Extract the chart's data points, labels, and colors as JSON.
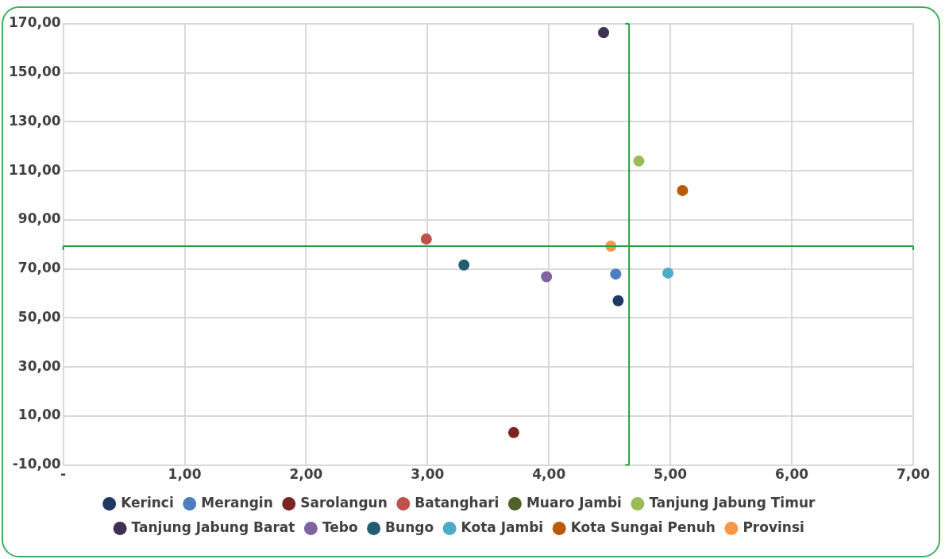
{
  "chart_data": {
    "type": "scatter",
    "xlim": [
      0,
      7
    ],
    "ylim": [
      -10,
      170
    ],
    "xticks": [
      {
        "value": 0,
        "label": "-"
      },
      {
        "value": 1,
        "label": "1,00"
      },
      {
        "value": 2,
        "label": "2,00"
      },
      {
        "value": 3,
        "label": "3,00"
      },
      {
        "value": 4,
        "label": "4,00"
      },
      {
        "value": 5,
        "label": "5,00"
      },
      {
        "value": 6,
        "label": "6,00"
      },
      {
        "value": 7,
        "label": "7,00"
      }
    ],
    "yticks": [
      {
        "value": -10,
        "label": "-10,00"
      },
      {
        "value": 10,
        "label": "10,00"
      },
      {
        "value": 30,
        "label": "30,00"
      },
      {
        "value": 50,
        "label": "50,00"
      },
      {
        "value": 70,
        "label": "70,00"
      },
      {
        "value": 90,
        "label": "90,00"
      },
      {
        "value": 110,
        "label": "110,00"
      },
      {
        "value": 130,
        "label": "130,00"
      },
      {
        "value": 150,
        "label": "150,00"
      },
      {
        "value": 170,
        "label": "170,00"
      }
    ],
    "grid": true,
    "legend": "bottom",
    "marker": "circle",
    "ref_lines": [
      {
        "axis": "x",
        "value": 4.66,
        "color": "#22a040"
      },
      {
        "axis": "y",
        "value": 79.3,
        "color": "#22a040"
      }
    ],
    "series": [
      {
        "name": "Kerinci",
        "color": "#203864",
        "x": [
          4.57
        ],
        "values": [
          57.0
        ]
      },
      {
        "name": "Merangin",
        "color": "#4a7ec0",
        "x": [
          4.55
        ],
        "values": [
          67.9
        ]
      },
      {
        "name": "Sarolangun",
        "color": "#7b2424",
        "x": [
          3.71
        ],
        "values": [
          3.2
        ]
      },
      {
        "name": "Batanghari",
        "color": "#c0504d",
        "x": [
          2.99
        ],
        "values": [
          82.2
        ]
      },
      {
        "name": "Muaro Jambi",
        "color": "#4f6228",
        "x": [
          null
        ],
        "values": [
          null
        ]
      },
      {
        "name": "Tanjung Jabung Timur",
        "color": "#9bbb59",
        "x": [
          4.74
        ],
        "values": [
          114
        ]
      },
      {
        "name": "Tanjung Jabung Barat",
        "color": "#403152",
        "x": [
          4.45
        ],
        "values": [
          166.4
        ]
      },
      {
        "name": "Tebo",
        "color": "#8064a2",
        "x": [
          3.98
        ],
        "values": [
          66.8
        ]
      },
      {
        "name": "Bungo",
        "color": "#215f70",
        "x": [
          3.3
        ],
        "values": [
          71.6
        ]
      },
      {
        "name": "Kota Jambi",
        "color": "#4bacc6",
        "x": [
          4.98
        ],
        "values": [
          68.3
        ]
      },
      {
        "name": "Kota Sungai Penuh",
        "color": "#b85a06",
        "x": [
          5.1
        ],
        "values": [
          102
        ]
      },
      {
        "name": "Provinsi",
        "color": "#f79646",
        "x": [
          4.51
        ],
        "values": [
          79.3
        ]
      }
    ]
  }
}
